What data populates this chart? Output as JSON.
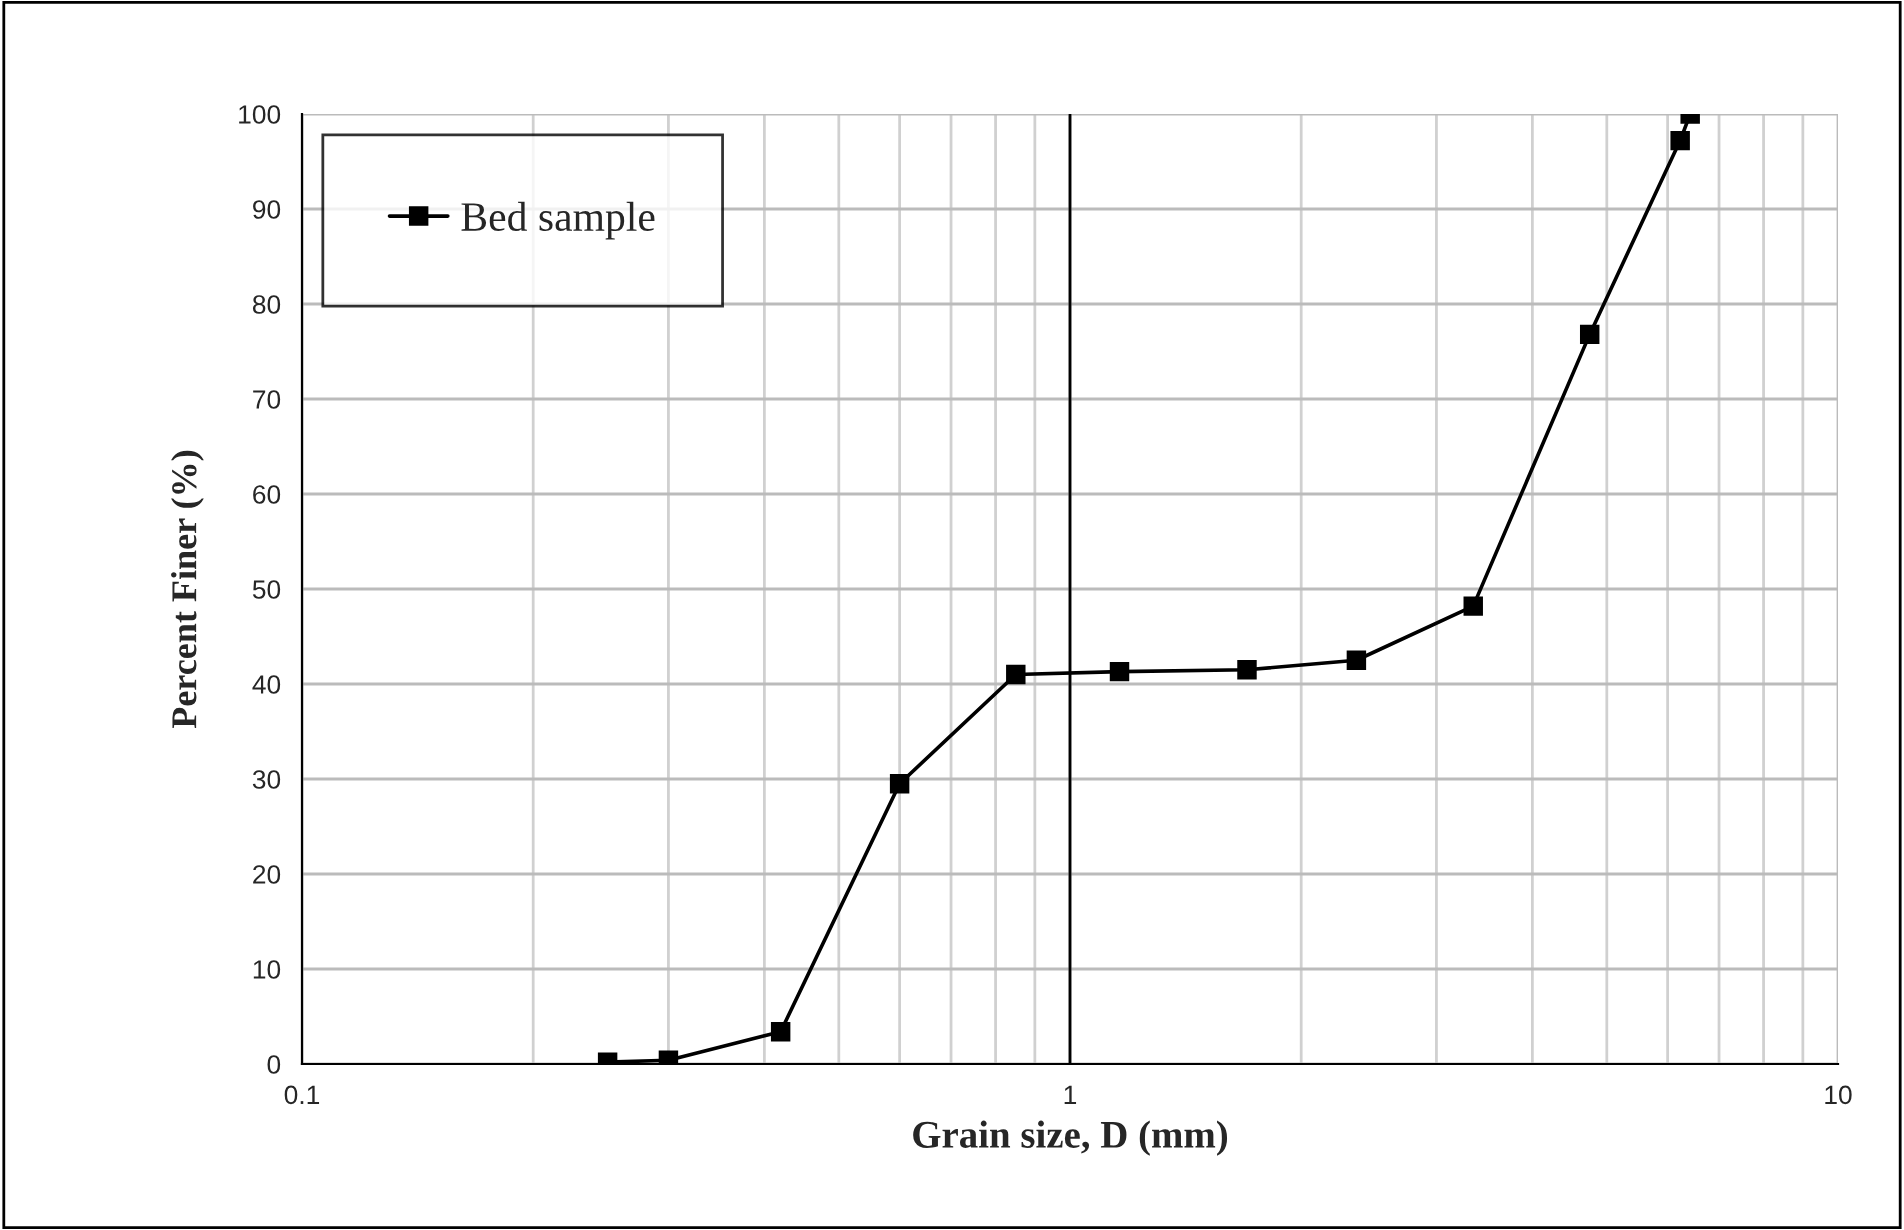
{
  "chart_data": {
    "type": "line",
    "xlabel": "Grain size, D (mm)",
    "ylabel": "Percent Finer (%)",
    "series": [
      {
        "name": "Bed sample",
        "color": "#000000",
        "x": [
          0.25,
          0.3,
          0.42,
          0.6,
          0.85,
          1.16,
          1.7,
          2.36,
          3.35,
          4.75,
          6.23,
          6.42
        ],
        "values": [
          0.2,
          0.4,
          3.4,
          29.5,
          41.0,
          41.3,
          41.5,
          42.5,
          48.2,
          76.8,
          97.2,
          100
        ]
      }
    ],
    "log": "x",
    "xlim": [
      0.1,
      10
    ],
    "xticks": [
      0.1,
      1,
      10
    ],
    "ylim": [
      0,
      100
    ],
    "yticks": [
      0,
      10,
      20,
      30,
      40,
      50,
      60,
      70,
      80,
      90,
      100
    ],
    "ref_lines": [
      {
        "axis": "x",
        "value": 1,
        "color": "#000000"
      }
    ],
    "grid": true,
    "legend": "top left",
    "marker": "square",
    "line_style": "solid"
  }
}
